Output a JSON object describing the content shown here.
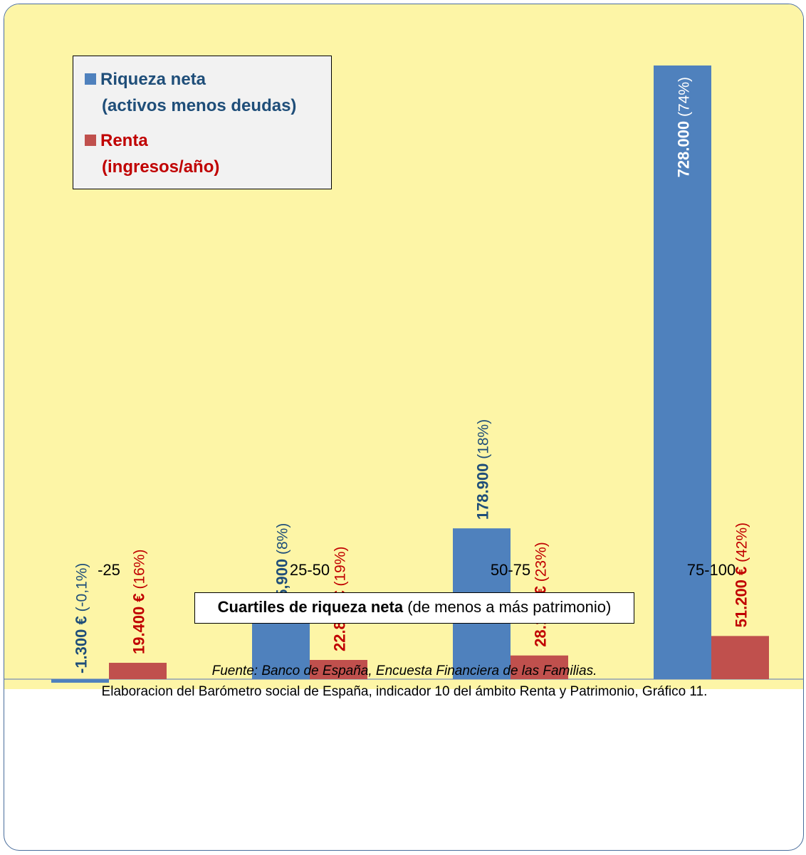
{
  "chart_data": {
    "type": "bar",
    "categories": [
      "-25",
      "25-50",
      "50-75",
      "75-100"
    ],
    "series": [
      {
        "name": "Riqueza neta (activos menos deudas)",
        "color": "#4f81bd",
        "label_color": "#1f4e79",
        "values": [
          -1300,
          75900,
          178900,
          728000
        ],
        "value_labels": [
          "-1.300 €",
          "75,900",
          "178.900",
          "728.000"
        ],
        "pct_labels": [
          "(-0,1%)",
          "(8%)",
          "(18%)",
          "(74%)"
        ]
      },
      {
        "name": "Renta (ingresos/año)",
        "color": "#c0504d",
        "label_color": "#c00000",
        "values": [
          19400,
          22800,
          28100,
          51200
        ],
        "value_labels": [
          "19.400 €",
          "22.800 €",
          "28.100 €",
          "51.200 €"
        ],
        "pct_labels": [
          "(16%)",
          "(19%)",
          "(23%)",
          "(42%)"
        ]
      }
    ],
    "xlabel_bold": "Cuartiles de riqueza neta",
    "xlabel_rest": " (de menos a más patrimonio)",
    "ylim": [
      -1300,
      740000
    ],
    "legend": {
      "position": "top-left",
      "items": [
        {
          "line1": "Riqueza neta",
          "line2": "(activos menos deudas)",
          "color": "#4f81bd",
          "text_color": "#1f4e79"
        },
        {
          "line1": "Renta",
          "line2": "(ingresos/año)",
          "color": "#c0504d",
          "text_color": "#c00000"
        }
      ]
    },
    "plot_background": "#fdf5a6"
  },
  "source": {
    "line1": "Fuente: Banco de España, Encuesta Financiera de las Familias.",
    "line2": "Elaboracion del Barómetro social de España, indicador  10 del ámbito Renta y Patrimonio, Gráfico 11."
  }
}
